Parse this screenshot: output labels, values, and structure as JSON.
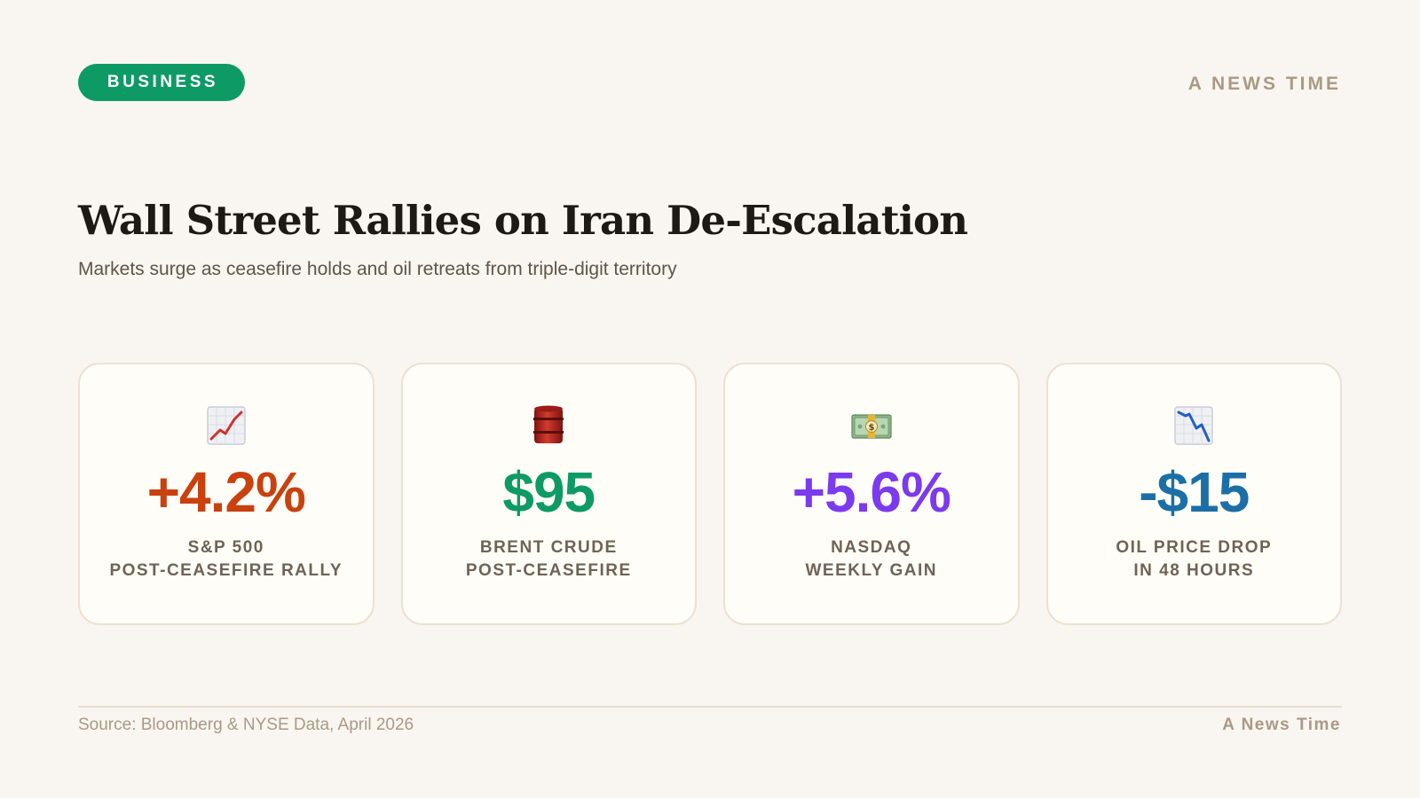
{
  "header": {
    "category": "BUSINESS",
    "brand": "A NEWS TIME"
  },
  "article": {
    "title": "Wall Street Rallies on Iran De-Escalation",
    "subtitle": "Markets surge as ceasefire holds and oil retreats from triple-digit territory"
  },
  "stats": [
    {
      "icon": "chart-increasing-icon",
      "value": "+4.2%",
      "label_line1": "S&P 500",
      "label_line2": "POST-CEASEFIRE RALLY",
      "color": "#c8410f"
    },
    {
      "icon": "oil-drum-icon",
      "value": "$95",
      "label_line1": "BRENT CRUDE",
      "label_line2": "POST-CEASEFIRE",
      "color": "#0e9a64"
    },
    {
      "icon": "dollar-banknote-icon",
      "value": "+5.6%",
      "label_line1": "NASDAQ",
      "label_line2": "WEEKLY GAIN",
      "color": "#7c3aed"
    },
    {
      "icon": "chart-decreasing-icon",
      "value": "-$15",
      "label_line1": "OIL PRICE DROP",
      "label_line2": "IN 48 HOURS",
      "color": "#1b6fa6"
    }
  ],
  "footer": {
    "source": "Source: Bloomberg & NYSE Data, April 2026",
    "brand": "A News Time"
  },
  "colors": {
    "accent": "#0e9a64",
    "background": "#f9f5f0",
    "muted": "#a99a84"
  }
}
